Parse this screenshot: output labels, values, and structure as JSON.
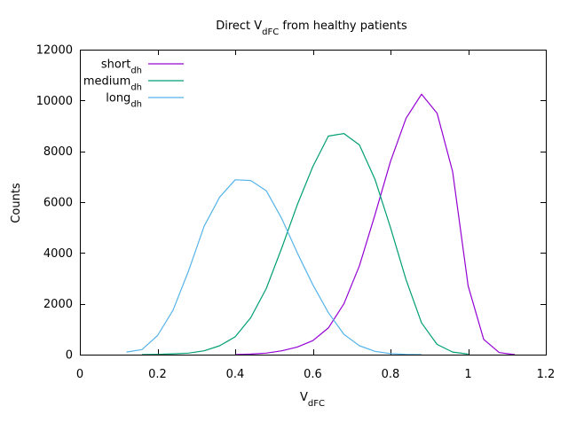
{
  "chart_data": {
    "type": "line",
    "title": {
      "main": "Direct V",
      "sub": "dFC",
      "rest": " from healthy patients"
    },
    "xlabel": {
      "main": "V",
      "sub": "dFC"
    },
    "ylabel": "Counts",
    "xlim": [
      0,
      1.2
    ],
    "ylim": [
      0,
      12000
    ],
    "xticks": [
      "0",
      "0.2",
      "0.4",
      "0.6",
      "0.8",
      "1",
      "1.2"
    ],
    "yticks": [
      "0",
      "2000",
      "4000",
      "6000",
      "8000",
      "10000",
      "12000"
    ],
    "grid": false,
    "legend_position": "top-left",
    "series": [
      {
        "name": {
          "main": "short",
          "sub": "dh"
        },
        "color": "#9400d3",
        "x": [
          0.4,
          0.44,
          0.48,
          0.52,
          0.56,
          0.6,
          0.64,
          0.68,
          0.72,
          0.76,
          0.8,
          0.84,
          0.88,
          0.92,
          0.96,
          1.0,
          1.04,
          1.08,
          1.12
        ],
        "y": [
          0,
          20,
          60,
          150,
          300,
          550,
          1050,
          2000,
          3500,
          5500,
          7600,
          9300,
          10250,
          9500,
          7200,
          2700,
          600,
          80,
          0
        ]
      },
      {
        "name": {
          "main": "medium",
          "sub": "dh"
        },
        "color": "#009e73",
        "x": [
          0.16,
          0.2,
          0.24,
          0.28,
          0.32,
          0.36,
          0.4,
          0.44,
          0.48,
          0.52,
          0.56,
          0.6,
          0.64,
          0.68,
          0.72,
          0.76,
          0.8,
          0.84,
          0.88,
          0.92,
          0.96,
          1.0
        ],
        "y": [
          0,
          10,
          30,
          60,
          150,
          350,
          700,
          1450,
          2600,
          4200,
          5900,
          7400,
          8600,
          8700,
          8250,
          6900,
          5000,
          2950,
          1250,
          400,
          100,
          20
        ]
      },
      {
        "name": {
          "main": "long",
          "sub": "dh"
        },
        "color": "#56b4e9",
        "x": [
          0.12,
          0.16,
          0.2,
          0.24,
          0.28,
          0.32,
          0.36,
          0.4,
          0.44,
          0.48,
          0.52,
          0.56,
          0.6,
          0.64,
          0.68,
          0.72,
          0.76,
          0.8,
          0.84,
          0.88
        ],
        "y": [
          100,
          200,
          750,
          1750,
          3300,
          5050,
          6200,
          6880,
          6850,
          6450,
          5350,
          4000,
          2750,
          1650,
          800,
          350,
          130,
          40,
          10,
          0
        ]
      }
    ]
  }
}
